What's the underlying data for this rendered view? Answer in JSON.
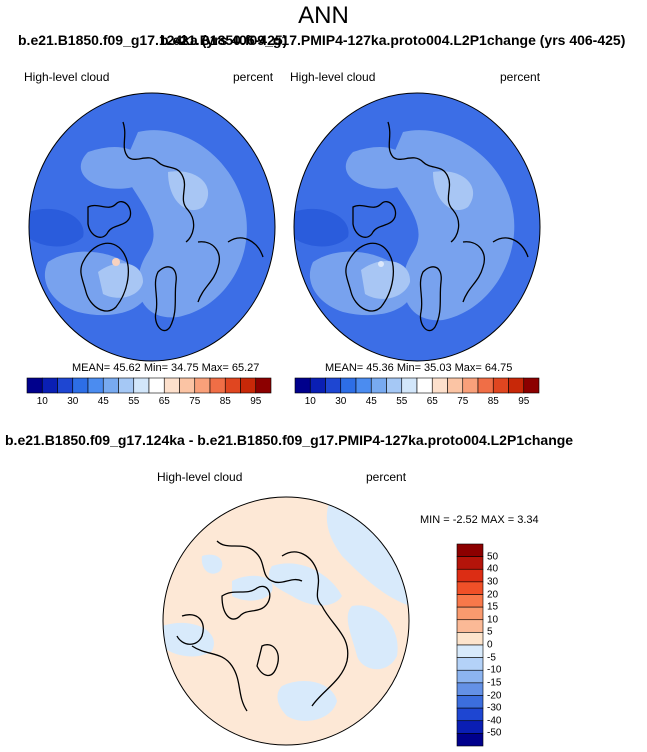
{
  "header": {
    "title": "ANN",
    "case_a": "b.e21.B1850.f09_g17.124ka (yrs 406-425)",
    "case_b": "b.e21.B1850.f09_g17.PMIP4-127ka.proto004.L2P1change (yrs 406-425)"
  },
  "panels": [
    {
      "variable": "High-level cloud",
      "units": "percent",
      "stats": "MEAN=  45.62  Min=  34.75  Max=  65.27",
      "colorbar_labels": [
        "10",
        "30",
        "45",
        "55",
        "65",
        "75",
        "85",
        "95"
      ]
    },
    {
      "variable": "High-level cloud",
      "units": "percent",
      "stats": "MEAN=  45.36  Min=  35.03  Max=  64.75",
      "colorbar_labels": [
        "10",
        "30",
        "45",
        "55",
        "65",
        "75",
        "85",
        "95"
      ]
    }
  ],
  "difference": {
    "title": "b.e21.B1850.f09_g17.124ka - b.e21.B1850.f09_g17.PMIP4-127ka.proto004.L2P1change",
    "variable": "High-level cloud",
    "units": "percent",
    "stats": "MIN =  -2.52 MAX =  3.34",
    "legend_labels": [
      "50",
      "40",
      "30",
      "20",
      "15",
      "10",
      "5",
      "0",
      "-5",
      "-10",
      "-15",
      "-20",
      "-30",
      "-40",
      "-50"
    ]
  },
  "colors": {
    "abs_scale": [
      "#00008c",
      "#0a1fb4",
      "#1e46d2",
      "#2d6ee6",
      "#4b8cf0",
      "#78aaf0",
      "#a5c8f5",
      "#d2e6fa",
      "#ffffff",
      "#fde0cc",
      "#fbc4a4",
      "#f9a07a",
      "#f06e46",
      "#e04620",
      "#c82808",
      "#8c0000"
    ],
    "diff_scale": [
      "#8c0000",
      "#b4140a",
      "#dc2d14",
      "#f05028",
      "#f8784a",
      "#fa9a6e",
      "#fbb996",
      "#fde4cc",
      "#d8eafb",
      "#b4d2f8",
      "#8cb4f0",
      "#6491e6",
      "#3c6ede",
      "#1e46d2",
      "#0a1eb4",
      "#00008c"
    ],
    "map_base": "#3c6ee6",
    "map_mid": "#78a2ee",
    "map_light": "#a8c6f4",
    "diff_blue": "#d8eafb",
    "diff_peach": "#fde8d6"
  }
}
